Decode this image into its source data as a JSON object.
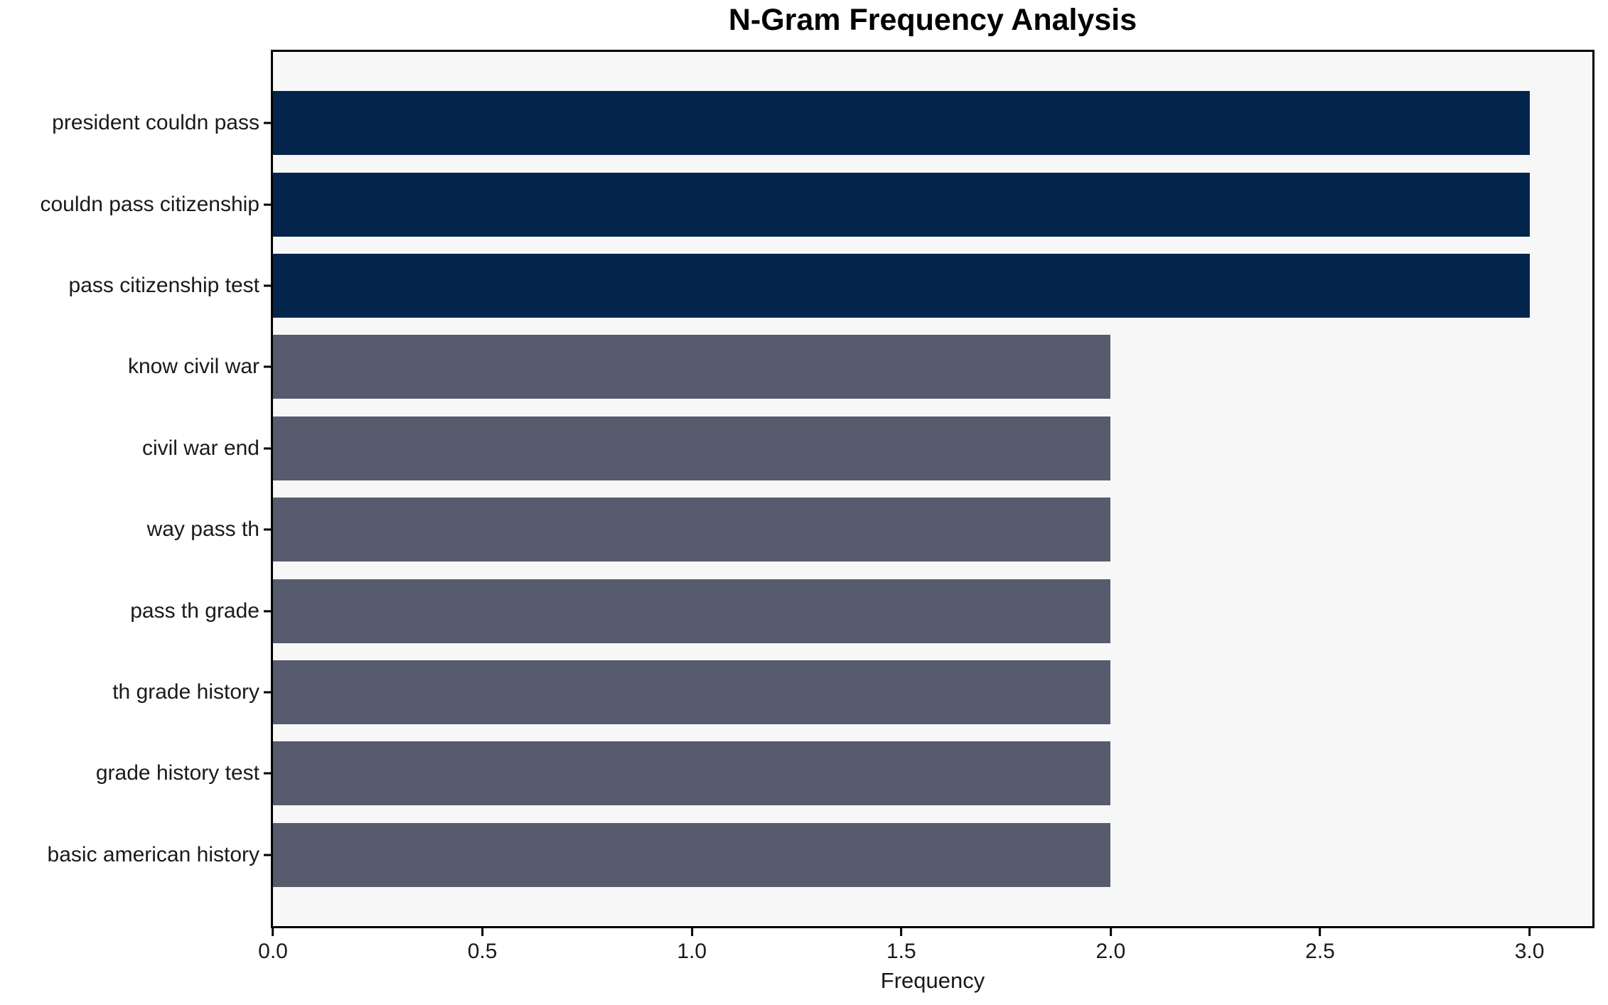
{
  "colors": {
    "highlight_bar": "#03254C",
    "default_bar": "#565C6D",
    "plot_background": "#F7F7F8",
    "figure_background": "#FFFFFF",
    "axis": "#000000"
  },
  "chart_data": {
    "type": "bar",
    "orientation": "horizontal",
    "title": "N-Gram Frequency Analysis",
    "xlabel": "Frequency",
    "ylabel": "",
    "categories": [
      "president couldn pass",
      "couldn pass citizenship",
      "pass citizenship test",
      "know civil war",
      "civil war end",
      "way pass th",
      "pass th grade",
      "th grade history",
      "grade history test",
      "basic american history"
    ],
    "values": [
      3,
      3,
      3,
      2,
      2,
      2,
      2,
      2,
      2,
      2
    ],
    "bar_colors": [
      "#03254C",
      "#03254C",
      "#03254C",
      "#565C6D",
      "#565C6D",
      "#565C6D",
      "#565C6D",
      "#565C6D",
      "#565C6D",
      "#565C6D"
    ],
    "xlim": [
      0,
      3.15
    ],
    "xtick_values": [
      0,
      0.5,
      1,
      1.5,
      2,
      2.5,
      3
    ],
    "xticks": [
      "0.0",
      "0.5",
      "1.0",
      "1.5",
      "2.0",
      "2.5",
      "3.0"
    ],
    "grid": false,
    "legend": false
  }
}
